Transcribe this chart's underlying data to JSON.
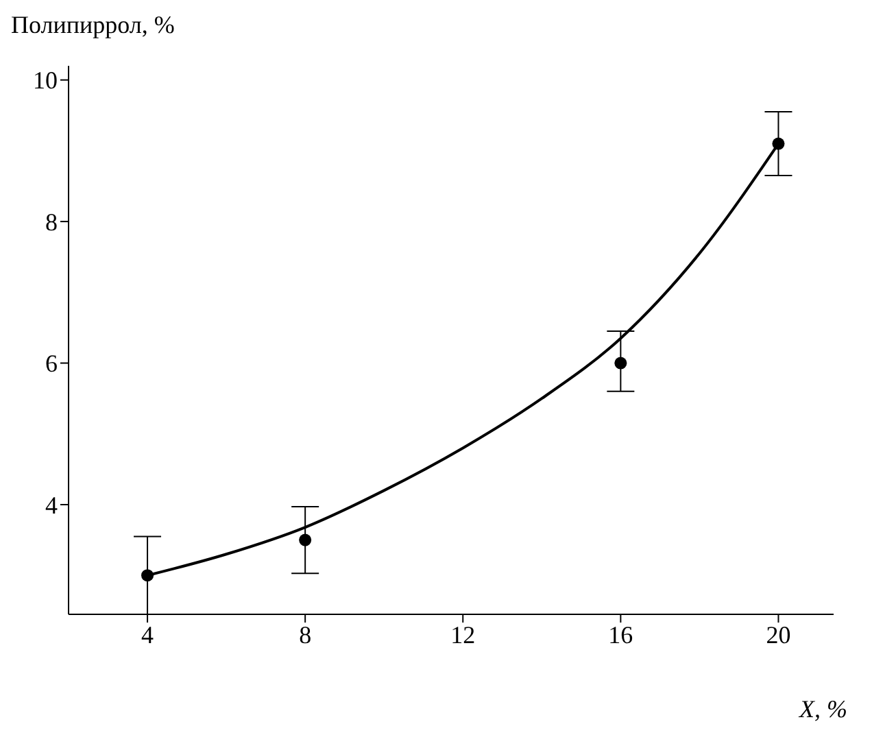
{
  "chart_data": {
    "type": "scatter",
    "xlabel": "X, %",
    "ylabel": "Полипиррол, %",
    "x": [
      4,
      8,
      16,
      20
    ],
    "series": [
      {
        "color": "#000000",
        "values": [
          3.0,
          3.5,
          6.0,
          9.1
        ],
        "errors": [
          0.55,
          0.47,
          [
            5.6,
            6.45
          ],
          0.45
        ]
      },
      {
        "type": "line",
        "color": "#000000",
        "marker": "none",
        "x": [
          4,
          6,
          8,
          10,
          12,
          14,
          16,
          18,
          20
        ],
        "values": [
          3.0,
          3.3,
          3.68,
          4.2,
          4.8,
          5.5,
          6.35,
          7.55,
          9.1
        ]
      }
    ],
    "xlim": [
      2,
      21.4
    ],
    "ylim": [
      2.45,
      10.2
    ],
    "xticks": [
      4,
      8,
      12,
      16,
      20
    ],
    "yticks": [
      4,
      6,
      8,
      10
    ],
    "grid": false,
    "legend": false,
    "marker": "circle"
  }
}
